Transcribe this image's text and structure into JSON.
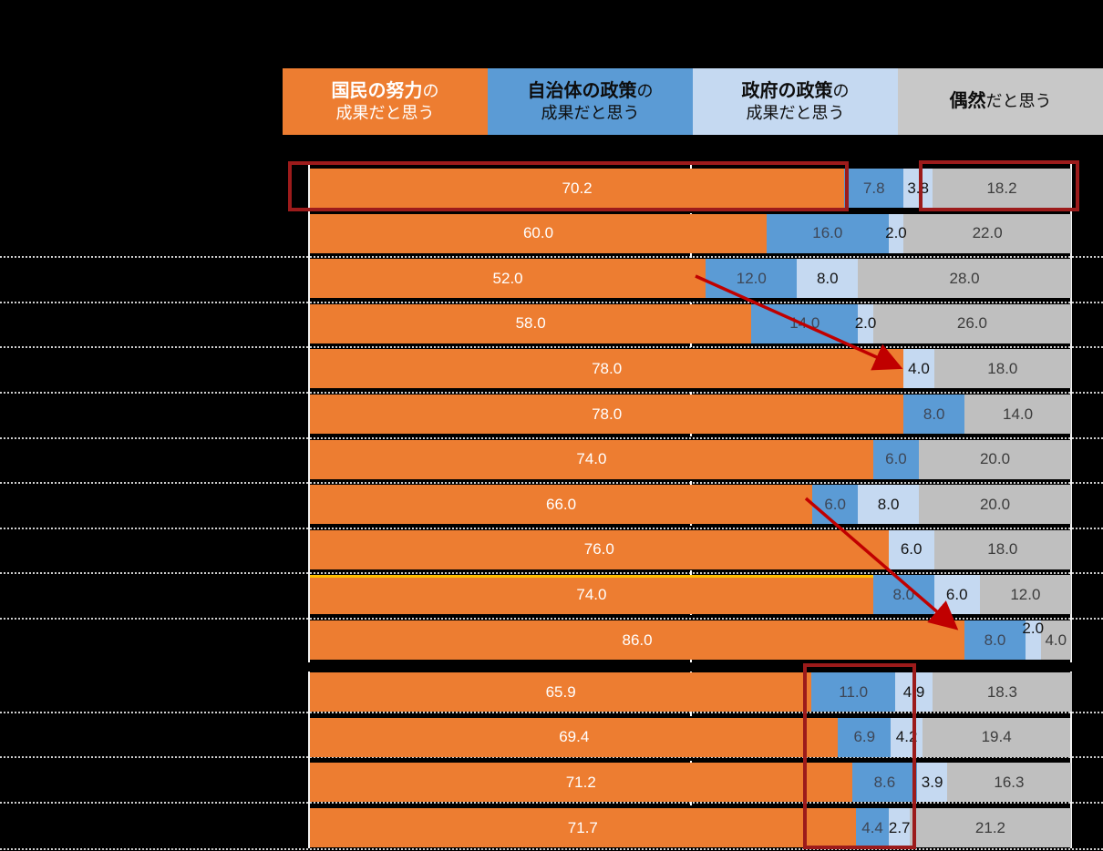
{
  "legend": {
    "items": [
      {
        "title": "国民の努力",
        "suffix": "の",
        "line2": "成果だと思う",
        "color": "#ED7D31",
        "text_color": "#FFFFFF"
      },
      {
        "title": "自治体の政策",
        "suffix": "の",
        "line2": "成果だと思う",
        "color": "#5B9BD5",
        "text_color": "#0D0D0D"
      },
      {
        "title": "政府の政策",
        "suffix": "の",
        "line2": "成果だと思う",
        "color": "#C5D9F1",
        "text_color": "#0D0D0D"
      },
      {
        "title": "偶然",
        "suffix": "だと思う",
        "line2": "",
        "color": "#C8C8C8",
        "text_color": "#0D0D0D"
      }
    ]
  },
  "chart_data": {
    "type": "bar",
    "subtype": "horizontal-stacked-percent",
    "xlim": [
      0,
      100
    ],
    "gridline_percent": 50,
    "legend_position": "top",
    "series_labels": [
      "国民の努力の成果だと思う",
      "自治体の政策の成果だと思う",
      "政府の政策の成果だと思う",
      "偶然だと思う"
    ],
    "series_keys": [
      "national-effort",
      "municipal-policy",
      "government-policy",
      "chance"
    ],
    "series_colors": [
      "#ED7D31",
      "#5B9BD5",
      "#C5D9F1",
      "#BFBFBF"
    ],
    "label_colors": [
      "#FFFFFF",
      "#3E4757",
      "#141414",
      "#3C3C3C"
    ],
    "group_sizes": [
      11,
      4
    ],
    "rows": [
      {
        "values": [
          70.2,
          7.8,
          3.8,
          18.2
        ]
      },
      {
        "values": [
          60.0,
          16.0,
          2.0,
          22.0
        ]
      },
      {
        "values": [
          52.0,
          12.0,
          8.0,
          28.0
        ]
      },
      {
        "values": [
          58.0,
          14.0,
          2.0,
          26.0
        ]
      },
      {
        "values": [
          78.0,
          0,
          4.0,
          18.0
        ]
      },
      {
        "values": [
          78.0,
          8.0,
          0,
          14.0
        ]
      },
      {
        "values": [
          74.0,
          6.0,
          0,
          20.0
        ]
      },
      {
        "values": [
          66.0,
          6.0,
          8.0,
          20.0
        ]
      },
      {
        "values": [
          76.0,
          0,
          6.0,
          18.0
        ]
      },
      {
        "values": [
          74.0,
          8.0,
          6.0,
          12.0
        ],
        "orange_top_highlight": true
      },
      {
        "values": [
          86.0,
          8.0,
          2.0,
          4.0
        ],
        "raise_label_index": 2
      },
      {
        "values": [
          65.9,
          11.0,
          4.9,
          18.3
        ]
      },
      {
        "values": [
          69.4,
          6.9,
          4.2,
          19.4
        ]
      },
      {
        "values": [
          71.2,
          8.6,
          3.9,
          16.3
        ]
      },
      {
        "values": [
          71.7,
          4.4,
          2.7,
          21.2
        ]
      }
    ]
  },
  "colors": {
    "background": "#000000",
    "highlight_box_red": "#9C1B1B",
    "arrow_red": "#C00000",
    "row_highlight_yellow": "#FFC000",
    "axis_line": "#F2F2F2",
    "separator": "#CFCFCF"
  }
}
